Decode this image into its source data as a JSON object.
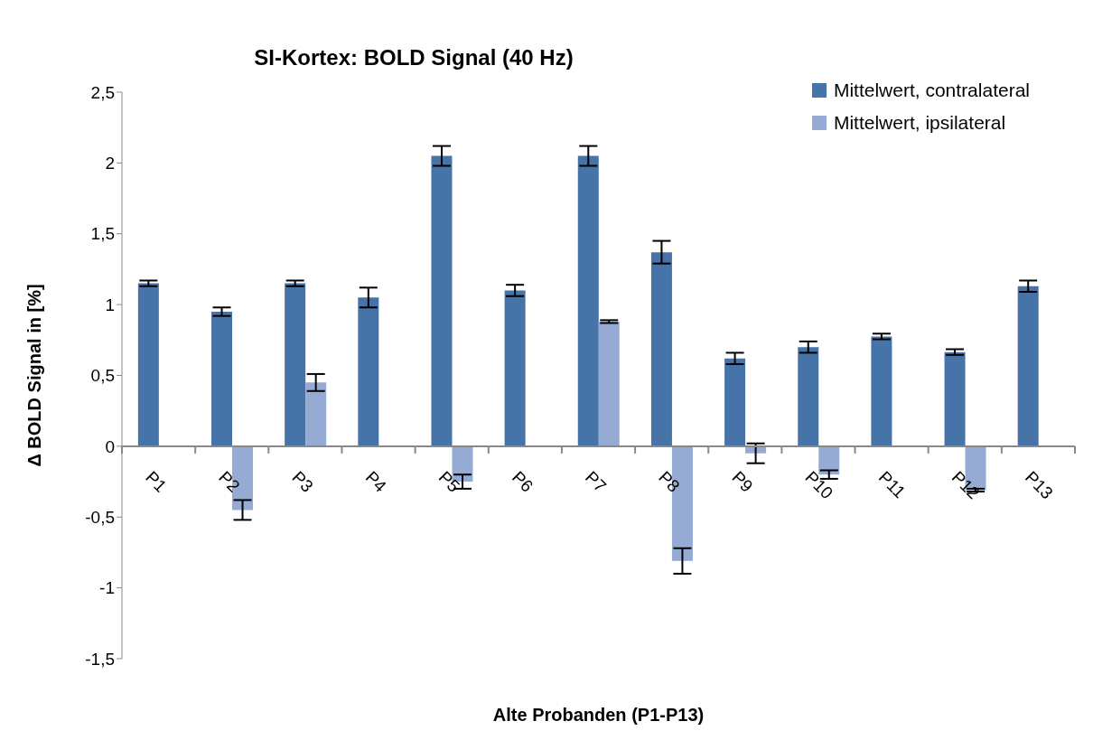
{
  "chart_data": {
    "type": "bar",
    "title": "SI-Kortex: BOLD Signal (40 Hz)",
    "xlabel": "Alte Probanden (P1-P13)",
    "ylabel": "Δ BOLD Signal in [%]",
    "categories": [
      "P1",
      "P2",
      "P3",
      "P4",
      "P5",
      "P6",
      "P7",
      "P8",
      "P9",
      "P10",
      "P11",
      "P12",
      "P13"
    ],
    "series": [
      {
        "name": "Mittelwert, contralateral",
        "color": "#4673a8",
        "values": [
          1.15,
          0.95,
          1.15,
          1.05,
          2.05,
          1.1,
          2.05,
          1.37,
          0.62,
          0.7,
          0.775,
          0.665,
          1.13
        ],
        "errors": [
          0.02,
          0.03,
          0.02,
          0.07,
          0.07,
          0.04,
          0.07,
          0.08,
          0.04,
          0.04,
          0.02,
          0.02,
          0.04
        ]
      },
      {
        "name": "Mittelwert, ipsilateral",
        "color": "#95abd3",
        "values": [
          null,
          -0.45,
          0.45,
          null,
          -0.25,
          null,
          0.88,
          -0.81,
          -0.05,
          -0.2,
          null,
          -0.31,
          null
        ],
        "errors": [
          null,
          0.07,
          0.06,
          null,
          0.05,
          null,
          0.01,
          0.09,
          0.07,
          0.03,
          null,
          0.01,
          null
        ]
      }
    ],
    "ylim": [
      -1.5,
      2.5
    ],
    "yticks": [
      {
        "value": -1.5,
        "label": "-1,5"
      },
      {
        "value": -1,
        "label": "-1"
      },
      {
        "value": -0.5,
        "label": "-0,5"
      },
      {
        "value": 0,
        "label": "0"
      },
      {
        "value": 0.5,
        "label": "0,5"
      },
      {
        "value": 1,
        "label": "1"
      },
      {
        "value": 1.5,
        "label": "1,5"
      },
      {
        "value": 2,
        "label": "2"
      },
      {
        "value": 2.5,
        "label": "2,5"
      }
    ],
    "grid": false,
    "legend": "top right"
  }
}
